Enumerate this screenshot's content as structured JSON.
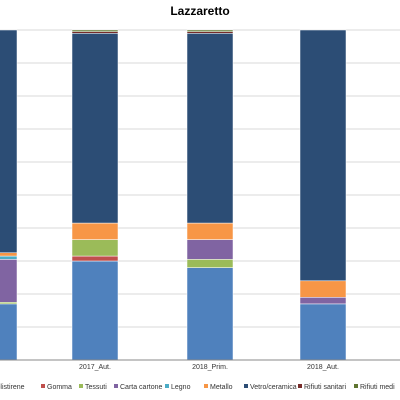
{
  "chart_data": {
    "type": "bar",
    "stacked": true,
    "title": "Lazzaretto",
    "xlabel": "",
    "ylabel": "",
    "ylim": [
      0,
      100
    ],
    "grid": true,
    "legend_position": "bottom",
    "categories": [
      "",
      "2017_Aut.",
      "2018_Prim.",
      "2018_Aut.",
      ""
    ],
    "series": [
      {
        "name": "e Polistirene",
        "color": "#4f81bd",
        "values": [
          17,
          30,
          28,
          17,
          0
        ]
      },
      {
        "name": "Gomma",
        "color": "#c0504d",
        "values": [
          0,
          1.5,
          0,
          0,
          0
        ]
      },
      {
        "name": "Tessuti",
        "color": "#9bbb59",
        "values": [
          0.5,
          5,
          2.5,
          0,
          0
        ]
      },
      {
        "name": "Carta cartone",
        "color": "#8064a2",
        "values": [
          13,
          0,
          6,
          2,
          0
        ]
      },
      {
        "name": "Legno",
        "color": "#4bacc6",
        "values": [
          1,
          0,
          0,
          0,
          0
        ]
      },
      {
        "name": "Metallo",
        "color": "#f79646",
        "values": [
          1,
          5,
          5,
          5,
          0
        ]
      },
      {
        "name": "Vetro/ceramica",
        "color": "#2c4d75",
        "values": [
          67.5,
          57.5,
          57.5,
          76,
          0
        ]
      },
      {
        "name": "Rifiuti sanitari",
        "color": "#772c2a",
        "values": [
          0,
          0.5,
          0.5,
          0,
          0
        ]
      },
      {
        "name": "Rifiuti medi",
        "color": "#5f7530",
        "values": [
          0,
          0.5,
          0.5,
          0,
          0
        ]
      }
    ]
  }
}
